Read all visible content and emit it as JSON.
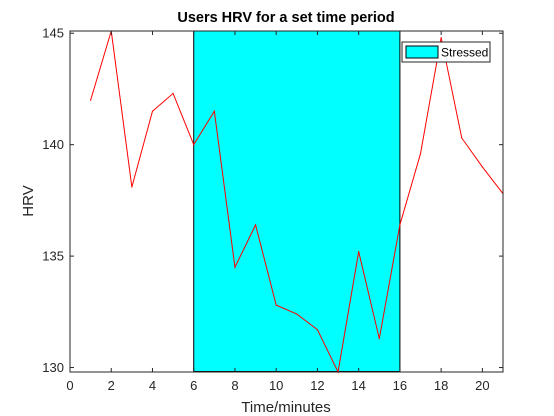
{
  "chart_data": {
    "type": "line",
    "title": "Users HRV for a set time period",
    "xlabel": "Time/minutes",
    "ylabel": "HRV",
    "xlim": [
      0,
      21
    ],
    "ylim": [
      129.8,
      145.1
    ],
    "xticks": [
      0,
      2,
      4,
      6,
      8,
      10,
      12,
      14,
      16,
      18,
      20
    ],
    "yticks": [
      130,
      135,
      140,
      145
    ],
    "grid": false,
    "series": [
      {
        "color": "#ff0000",
        "x": [
          1,
          2,
          3,
          4,
          5,
          6,
          7,
          8,
          9,
          10,
          11,
          12,
          13,
          14,
          15,
          16,
          17,
          18,
          19,
          20,
          21
        ],
        "y": [
          142.0,
          145.1,
          138.1,
          141.5,
          142.3,
          140.0,
          141.5,
          134.5,
          136.4,
          132.8,
          132.4,
          131.7,
          129.8,
          135.2,
          131.3,
          136.4,
          139.6,
          144.8,
          140.3,
          139.0,
          137.8
        ]
      }
    ],
    "shaded_region": {
      "name": "Stressed",
      "x_start": 6,
      "x_end": 16,
      "color": "#00ffff"
    },
    "legend": {
      "placement": "top-right",
      "entries": [
        "Stressed"
      ]
    }
  }
}
